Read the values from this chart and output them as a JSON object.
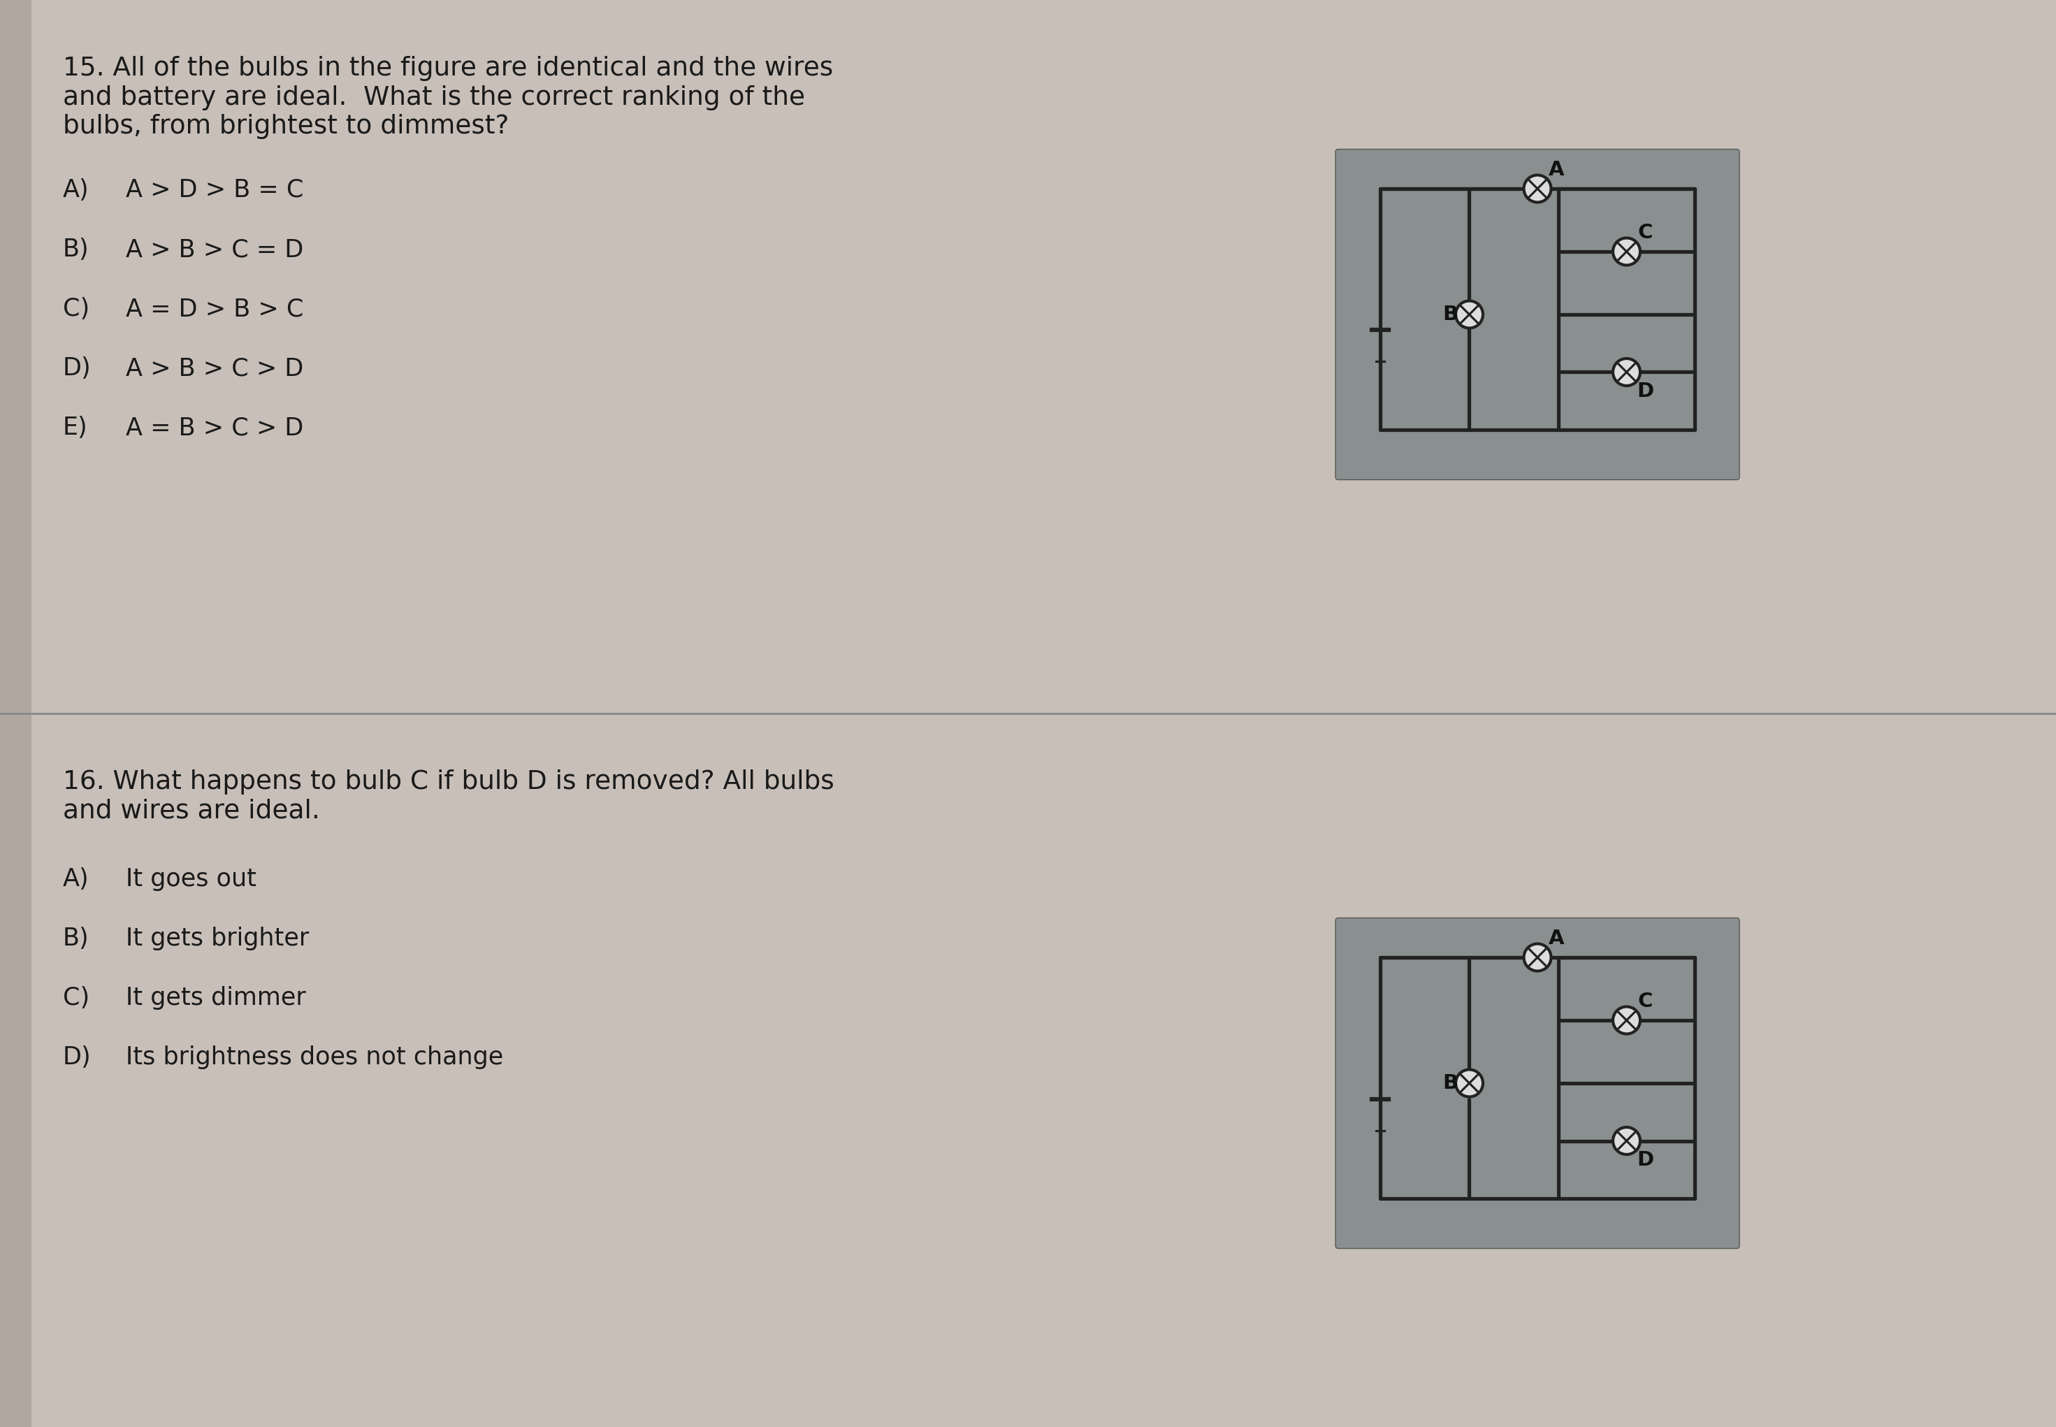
{
  "q15_title": "15. All of the bulbs in the figure are identical and the wires\nand battery are ideal.  What is the correct ranking of the\nbulbs, from brightest to dimmest?",
  "q15_options": [
    [
      "A)",
      "A > D > B = C"
    ],
    [
      "B)",
      "A > B > C = D"
    ],
    [
      "C)",
      "A = D > B > C"
    ],
    [
      "D)",
      "A > B > C > D"
    ],
    [
      "E)",
      "A = B > C > D"
    ]
  ],
  "q16_title": "16. What happens to bulb C if bulb D is removed? All bulbs\nand wires are ideal.",
  "q16_options": [
    [
      "A)",
      "It goes out"
    ],
    [
      "B)",
      "It gets brighter"
    ],
    [
      "C)",
      "It gets dimmer"
    ],
    [
      "D)",
      "Its brightness does not change"
    ]
  ],
  "bg_color": "#c8c0b8",
  "text_color": "#1a1a1a",
  "circuit_bg": "#8a9090",
  "divider_color": "#888888",
  "title_fontsize": 15,
  "option_fontsize": 14,
  "label_fontsize": 13
}
